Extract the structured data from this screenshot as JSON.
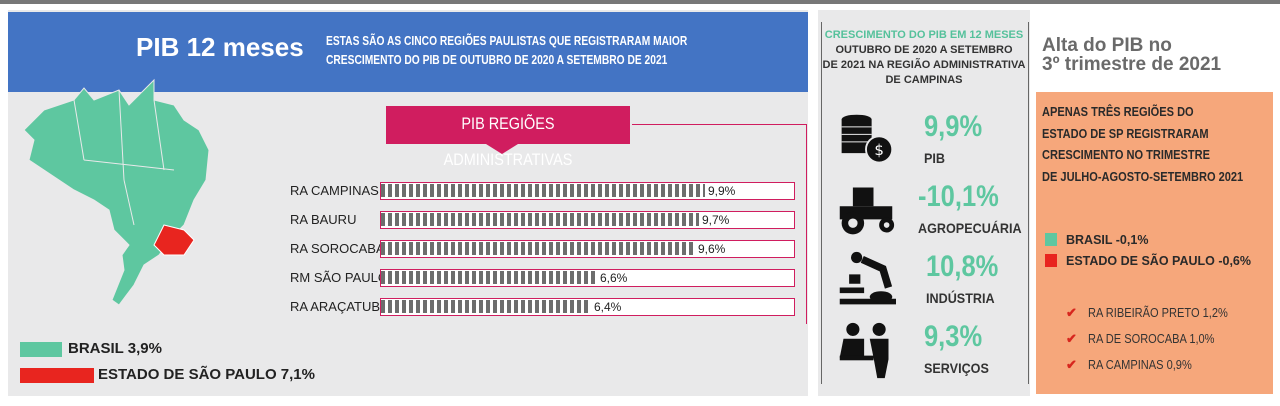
{
  "banner": {
    "title": "PIB 12 meses",
    "subtitle_line1": "ESTAS SÃO AS CINCO REGIÕES PAULISTAS QUE REGISTRARAM MAIOR",
    "subtitle_line2": "CRESCIMENTO DO PIB DE OUTUBRO DE 2020 A SETEMBRO DE 2021"
  },
  "legend": {
    "brasil": "BRASIL 3,9%",
    "sp": "ESTADO DE SÃO PAULO 7,1%"
  },
  "colors": {
    "green": "#5ec7a0",
    "red": "#e8251f",
    "blue": "#4374c4",
    "pink": "#d01d5f",
    "orange": "#f6a77b"
  },
  "chart_data": {
    "type": "bar",
    "title": "PIB REGIÕES ADMINISTRATIVAS",
    "categories": [
      "RA CAMPINAS",
      "RA BAURU",
      "RA SOROCABA",
      "RM SÃO PAULO",
      "RA ARAÇATUBA"
    ],
    "values": [
      9.9,
      9.7,
      9.6,
      6.6,
      6.4
    ],
    "value_labels": [
      "9,9%",
      "9,7%",
      "9,6%",
      "6,6%",
      "6,4%"
    ],
    "unit": "%",
    "xlim": [
      0,
      11
    ]
  },
  "middle": {
    "header_green": "CRESCIMENTO DO PIB EM 12 MESES",
    "header_line2": "OUTUBRO DE 2020 A SETEMBRO",
    "header_line3": "DE 2021  NA REGIÃO ADMINISTRATIVA",
    "header_line4": "DE CAMPINAS",
    "stats": [
      {
        "value": "9,9%",
        "label": "PIB",
        "icon": "money-coins-icon"
      },
      {
        "value": "-10,1%",
        "label": "AGROPECUÁRIA",
        "icon": "tractor-icon"
      },
      {
        "value": "10,8%",
        "label": "INDÚSTRIA",
        "icon": "robot-arm-icon"
      },
      {
        "value": "9,3%",
        "label": "SERVIÇOS",
        "icon": "people-meeting-icon"
      }
    ]
  },
  "right": {
    "title_line1": "Alta do PIB no",
    "title_line2": "3º trimestre de 2021",
    "box_lines": [
      "APENAS TRÊS REGIÕES DO",
      "ESTADO DE SP REGISTRARAM",
      "CRESCIMENTO NO TRIMESTRE",
      "DE JULHO-AGOSTO-SETEMBRO 2021"
    ],
    "legend_brasil": "BRASIL -0,1%",
    "legend_sp": "ESTADO DE SÃO PAULO -0,6%",
    "checks": [
      "RA RIBEIRÃO PRETO 1,2%",
      "RA DE SOROCABA 1,0%",
      "RA CAMPINAS 0,9%"
    ]
  }
}
